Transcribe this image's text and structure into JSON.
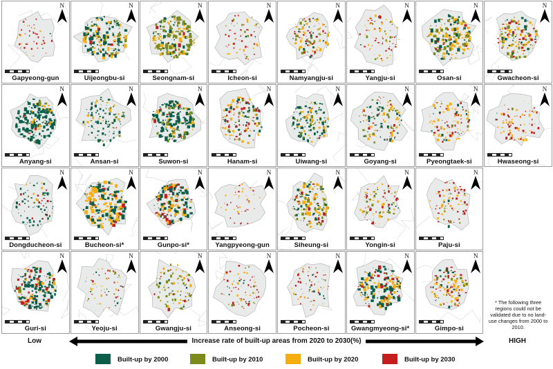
{
  "legend": {
    "items": [
      {
        "label": "Built-up by 2000",
        "color": "#0b5e4a"
      },
      {
        "label": "Built-up by 2010",
        "color": "#7d8b1c"
      },
      {
        "label": "Built-up by 2020",
        "color": "#f5ad10"
      },
      {
        "label": "Built-up by 2030",
        "color": "#c41e1e"
      }
    ]
  },
  "scale": {
    "low": "Low",
    "high": "HIGH",
    "title": "Increase rate of built-up areas from 2020 to 2030(%)"
  },
  "north_label": "N",
  "footnote": "* The following three regions could not be validated due to no land-use changes from 2000 to 2010.",
  "regions": [
    {
      "name": "Gapyeong-gun",
      "mix": [
        0.05,
        0.0,
        0.3,
        0.65
      ],
      "density": 0.05
    },
    {
      "name": "Uijeongbu-si",
      "mix": [
        0.55,
        0.15,
        0.25,
        0.05
      ],
      "density": 0.55
    },
    {
      "name": "Seongnam-si",
      "mix": [
        0.2,
        0.55,
        0.2,
        0.05
      ],
      "density": 0.6
    },
    {
      "name": "Icheon-si",
      "mix": [
        0.05,
        0.15,
        0.3,
        0.5
      ],
      "density": 0.12
    },
    {
      "name": "Namyangju-si",
      "mix": [
        0.15,
        0.35,
        0.35,
        0.15
      ],
      "density": 0.3
    },
    {
      "name": "Yangju-si",
      "mix": [
        0.05,
        0.2,
        0.35,
        0.4
      ],
      "density": 0.15
    },
    {
      "name": "Osan-si",
      "mix": [
        0.3,
        0.25,
        0.35,
        0.1
      ],
      "density": 0.55
    },
    {
      "name": "Gwacheon-si",
      "mix": [
        0.2,
        0.3,
        0.35,
        0.15
      ],
      "density": 0.45
    },
    {
      "name": "Anyang-si",
      "mix": [
        0.8,
        0.05,
        0.1,
        0.05
      ],
      "density": 0.6
    },
    {
      "name": "Ansan-si",
      "mix": [
        0.65,
        0.1,
        0.2,
        0.05
      ],
      "density": 0.3
    },
    {
      "name": "Suwon-si",
      "mix": [
        0.7,
        0.15,
        0.1,
        0.05
      ],
      "density": 0.6
    },
    {
      "name": "Hanam-si",
      "mix": [
        0.35,
        0.1,
        0.3,
        0.25
      ],
      "density": 0.35
    },
    {
      "name": "Uiwang-si",
      "mix": [
        0.55,
        0.2,
        0.2,
        0.05
      ],
      "density": 0.35
    },
    {
      "name": "Goyang-si",
      "mix": [
        0.3,
        0.15,
        0.35,
        0.2
      ],
      "density": 0.35
    },
    {
      "name": "Pyeongtaek-si",
      "mix": [
        0.1,
        0.1,
        0.45,
        0.35
      ],
      "density": 0.3
    },
    {
      "name": "Hwaseong-si",
      "mix": [
        0.05,
        0.05,
        0.45,
        0.45
      ],
      "density": 0.2
    },
    {
      "name": "Dongducheon-si",
      "mix": [
        0.75,
        0.05,
        0.1,
        0.1
      ],
      "density": 0.2
    },
    {
      "name": "Bucheon-si*",
      "mix": [
        0.45,
        0.0,
        0.45,
        0.1
      ],
      "density": 0.7
    },
    {
      "name": "Gunpo-si*",
      "mix": [
        0.55,
        0.0,
        0.3,
        0.15
      ],
      "density": 0.55
    },
    {
      "name": "Yangpyeong-gun",
      "mix": [
        0.0,
        0.0,
        0.3,
        0.7
      ],
      "density": 0.03
    },
    {
      "name": "Siheung-si",
      "mix": [
        0.3,
        0.3,
        0.3,
        0.1
      ],
      "density": 0.45
    },
    {
      "name": "Yongin-si",
      "mix": [
        0.15,
        0.25,
        0.35,
        0.25
      ],
      "density": 0.25
    },
    {
      "name": "Paju-si",
      "mix": [
        0.05,
        0.1,
        0.4,
        0.45
      ],
      "density": 0.2
    },
    {
      "name": "Guri-si",
      "mix": [
        0.65,
        0.05,
        0.15,
        0.15
      ],
      "density": 0.6
    },
    {
      "name": "Yeoju-si",
      "mix": [
        0.25,
        0.15,
        0.3,
        0.3
      ],
      "density": 0.1
    },
    {
      "name": "Gwangju-si",
      "mix": [
        0.15,
        0.45,
        0.3,
        0.1
      ],
      "density": 0.25
    },
    {
      "name": "Anseong-si",
      "mix": [
        0.1,
        0.3,
        0.3,
        0.3
      ],
      "density": 0.15
    },
    {
      "name": "Pocheon-si",
      "mix": [
        0.1,
        0.1,
        0.3,
        0.5
      ],
      "density": 0.12
    },
    {
      "name": "Gwangmyeong-si*",
      "mix": [
        0.55,
        0.0,
        0.3,
        0.15
      ],
      "density": 0.6
    },
    {
      "name": "Gimpo-si",
      "mix": [
        0.1,
        0.15,
        0.4,
        0.35
      ],
      "density": 0.35
    }
  ]
}
